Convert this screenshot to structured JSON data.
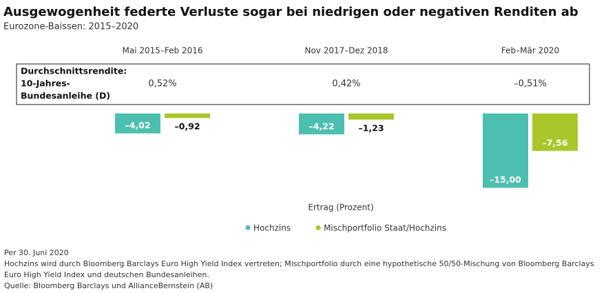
{
  "chart_data": {
    "type": "bar",
    "title": "Ausgewogenheit federte Verluste sogar bei niedrigen oder negativen Renditen ab",
    "subtitle": "Eurozone-Baissen: 2015–2020",
    "categories": [
      "Mai 2015–Feb 2016",
      "Nov 2017–Dez 2018",
      "Feb–Mär 2020"
    ],
    "yield_label": [
      "Durchschnittsrendite:",
      "10-Jahres-",
      "Bundesanleihe (D)"
    ],
    "yields": [
      "0,52%",
      "0,42%",
      "–0,51%"
    ],
    "series": [
      {
        "name": "Hochzins",
        "color": "#4dbfb0",
        "values": [
          -4.02,
          -4.22,
          -15.0
        ],
        "value_labels": [
          "–4,02",
          "–4,22",
          "–15,00"
        ]
      },
      {
        "name": "Mischportfolio Staat/Hochzins",
        "color": "#a9c62b",
        "values": [
          -0.92,
          -1.23,
          -7.56
        ],
        "value_labels": [
          "–0,92",
          "–1,23",
          "–7,56"
        ]
      }
    ],
    "ylim": [
      -15,
      0
    ],
    "x_label": "Ertrag (Prozent)",
    "notes": [
      "Per 30. Juni 2020",
      "Hochzins wird durch Bloomberg Barclays Euro High Yield Index vertreten; Mischportfolio durch eine hypothetische 50/50-Mischung von Bloomberg Barclays Euro High Yield Index und deutschen Bundesanleihen.",
      "Quelle: Bloomberg Barclays und AllianceBernstein (AB)"
    ]
  }
}
